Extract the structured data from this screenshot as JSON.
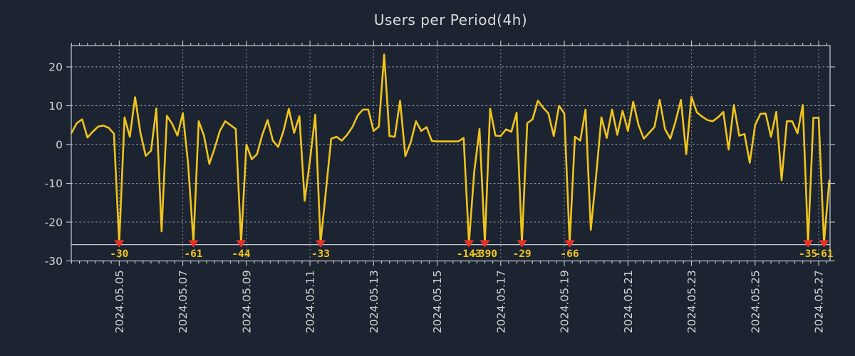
{
  "title": "Users per Period(4h)",
  "colors": {
    "background": "#1b2430",
    "line": "#f0c41d",
    "marker": "#e83228",
    "marker_label": "#f0c41d",
    "grid": "#b6bec8",
    "axis": "#c8ced4",
    "text": "#d4d4d4",
    "threshold": "#c8ced4"
  },
  "chart_data": {
    "type": "line",
    "title": "Users per Period(4h)",
    "period": "4h",
    "x_tick_labels": [
      "2024.05.05",
      "2024.05.07",
      "2024.05.09",
      "2024.05.11",
      "2024.05.13",
      "2024.05.15",
      "2024.05.17",
      "2024.05.19",
      "2024.05.21",
      "2024.05.23",
      "2024.05.25",
      "2024.05.27"
    ],
    "x_tick_indices": [
      9,
      21,
      33,
      45,
      57,
      69,
      81,
      93,
      105,
      117,
      129,
      141
    ],
    "y_tick_labels": [
      "20",
      "10",
      "0",
      "-10",
      "-20",
      "-30"
    ],
    "y_tick_values": [
      20,
      10,
      0,
      -10,
      -20,
      -30
    ],
    "ylim": [
      -30,
      25.5
    ],
    "grid": true,
    "legend": false,
    "threshold_y": -25.8,
    "clip_floor": -25.3,
    "values": [
      3.0,
      5.5,
      6.5,
      1.8,
      3.3,
      4.6,
      4.9,
      4.3,
      2.8,
      -30,
      7.0,
      2.0,
      12.2,
      3.0,
      -2.9,
      -1.6,
      9.3,
      -22.4,
      7.4,
      5.3,
      2.3,
      8.1,
      -5.0,
      -61,
      6.0,
      2.3,
      -5.0,
      -1.0,
      3.5,
      6.0,
      5.0,
      4.0,
      -44,
      0.0,
      -3.8,
      -2.5,
      2.5,
      6.3,
      1.0,
      -0.6,
      3.5,
      9.2,
      3.0,
      7.3,
      -14.5,
      -4.0,
      7.7,
      -33,
      -12.0,
      1.5,
      2.0,
      1.0,
      2.5,
      4.5,
      7.5,
      9.0,
      9.0,
      3.5,
      4.6,
      23.2,
      2.2,
      2.0,
      11.3,
      -3.0,
      0.5,
      6.0,
      3.5,
      4.5,
      0.9,
      0.8,
      0.8,
      0.8,
      0.8,
      0.8,
      1.7,
      -143,
      -7.0,
      4.0,
      -390,
      9.2,
      2.3,
      2.2,
      3.9,
      3.3,
      8.2,
      -29,
      5.5,
      6.5,
      11.3,
      9.5,
      8.0,
      2.2,
      10.0,
      8.0,
      -66,
      2.0,
      1.0,
      9.0,
      -22.0,
      -8.0,
      7.0,
      1.7,
      9.0,
      2.5,
      8.7,
      3.5,
      11.0,
      5.0,
      1.5,
      3.0,
      4.5,
      11.5,
      4.0,
      1.5,
      6.0,
      11.5,
      -2.5,
      12.3,
      8.3,
      7.2,
      6.3,
      6.0,
      7.0,
      8.4,
      -1.3,
      10.2,
      2.3,
      2.7,
      -4.7,
      5.0,
      7.9,
      8.0,
      2.0,
      8.4,
      -9.2,
      6.0,
      6.0,
      2.9,
      10.2,
      -35,
      6.9,
      6.9,
      -61,
      -9.3
    ],
    "markers": [
      {
        "index": 9,
        "label": "-30"
      },
      {
        "index": 23,
        "label": "-61"
      },
      {
        "index": 32,
        "label": "-44"
      },
      {
        "index": 47,
        "label": "-33"
      },
      {
        "index": 75,
        "label": "-143"
      },
      {
        "index": 78,
        "label": "-390"
      },
      {
        "index": 85,
        "label": "-29"
      },
      {
        "index": 94,
        "label": "-66"
      },
      {
        "index": 139,
        "label": "-35"
      },
      {
        "index": 142,
        "label": "-61"
      }
    ]
  }
}
